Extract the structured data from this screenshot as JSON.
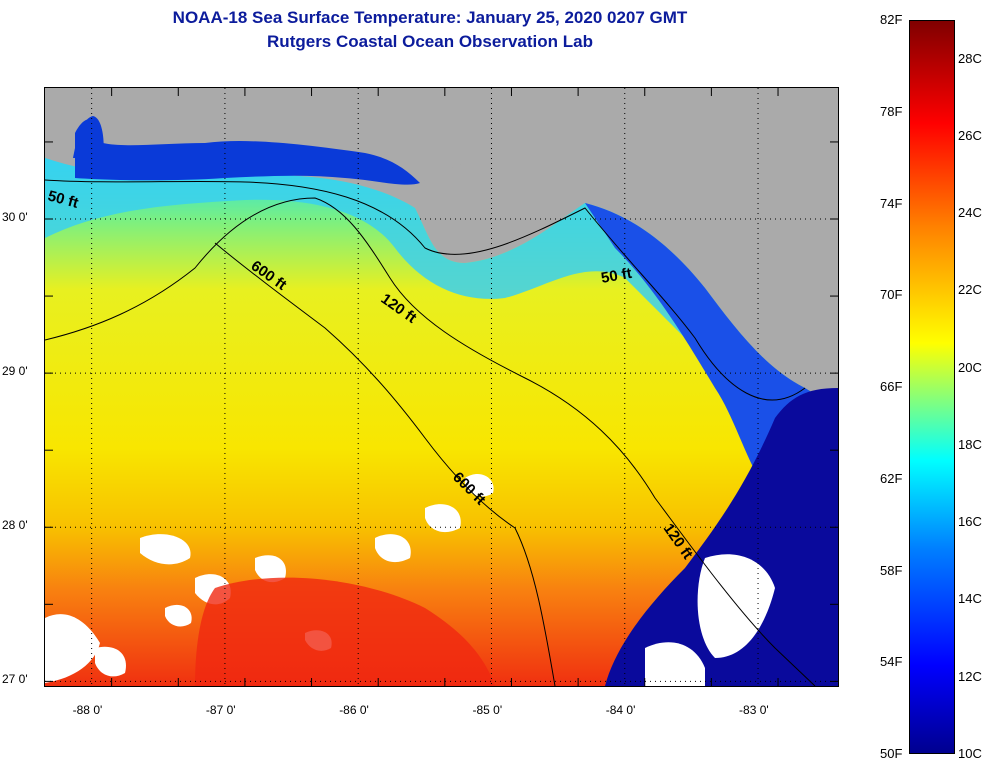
{
  "title": {
    "line1": "NOAA-18 Sea Surface Temperature:  January 25, 2020 0207 GMT",
    "line2": "Rutgers Coastal Ocean Observation Lab"
  },
  "map": {
    "lon_ticks": [
      "-88 0'",
      "-87 0'",
      "-86 0'",
      "-85 0'",
      "-84 0'",
      "-83 0'"
    ],
    "lat_ticks": [
      "30 0'",
      "29 0'",
      "28 0'",
      "27 0'"
    ],
    "lon_values": [
      -88,
      -87,
      -86,
      -85,
      -84,
      -83
    ],
    "lat_values": [
      30,
      29,
      28,
      27
    ],
    "lon_range": [
      -88.35,
      -82.4
    ],
    "lat_range": [
      26.97,
      30.85
    ],
    "contour_labels": [
      "50 ft",
      "600 ft",
      "120 ft",
      "50 ft",
      "600 ft",
      "120 ft"
    ],
    "colors": {
      "land": "#aaaaaa",
      "cloud": "#ffffff",
      "cold_shelf": "#0a2bd8",
      "mid_shelf": "#20d8f0",
      "warm_water": "#f4ee10",
      "gulf_stream": "#f03010"
    }
  },
  "colorbar": {
    "fahrenheit": [
      "82F",
      "78F",
      "74F",
      "70F",
      "66F",
      "62F",
      "58F",
      "54F",
      "50F"
    ],
    "celsius": [
      "28C",
      "26C",
      "24C",
      "22C",
      "20C",
      "18C",
      "16C",
      "14C",
      "12C",
      "10C"
    ]
  }
}
